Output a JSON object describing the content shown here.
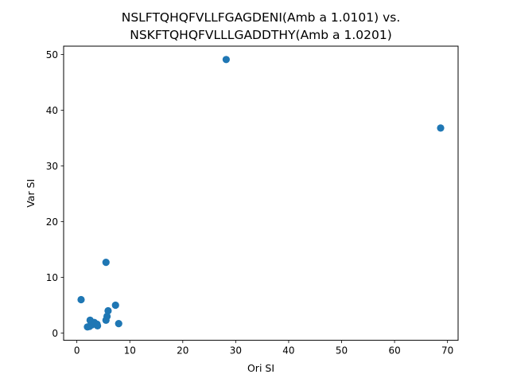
{
  "chart_data": {
    "type": "scatter",
    "title": "NSLFTQHQFVLLFGAGDENI(Amb a 1.0101) vs.\nNSKFTQHQFVLLLGADDTHY(Amb a 1.0201)",
    "title_lines": [
      "NSLFTQHQFVLLFGAGDENI(Amb a 1.0101) vs.",
      "NSKFTQHQFVLLLGADDTHY(Amb a 1.0201)"
    ],
    "xlabel": "Ori SI",
    "ylabel": "Var SI",
    "xlim": [
      -2.5,
      72
    ],
    "ylim": [
      -1.3,
      51.5
    ],
    "xticks": [
      0,
      10,
      20,
      30,
      40,
      50,
      60,
      70
    ],
    "yticks": [
      0,
      10,
      20,
      30,
      40,
      50
    ],
    "grid": false,
    "legend": false,
    "marker_color": "#1f77b4",
    "points": [
      {
        "x": 28.2,
        "y": 49.1
      },
      {
        "x": 68.7,
        "y": 36.8
      },
      {
        "x": 5.5,
        "y": 12.7
      },
      {
        "x": 0.8,
        "y": 6.0
      },
      {
        "x": 7.3,
        "y": 5.0
      },
      {
        "x": 5.9,
        "y": 4.0
      },
      {
        "x": 5.7,
        "y": 3.0
      },
      {
        "x": 5.5,
        "y": 2.3
      },
      {
        "x": 2.5,
        "y": 2.3
      },
      {
        "x": 3.3,
        "y": 1.9
      },
      {
        "x": 3.8,
        "y": 1.6
      },
      {
        "x": 7.9,
        "y": 1.7
      },
      {
        "x": 2.9,
        "y": 1.5
      },
      {
        "x": 2.4,
        "y": 1.2
      },
      {
        "x": 2.0,
        "y": 1.1
      },
      {
        "x": 3.9,
        "y": 1.3
      }
    ]
  }
}
